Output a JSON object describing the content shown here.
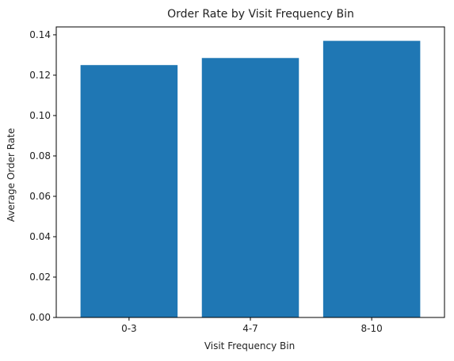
{
  "chart_data": {
    "type": "bar",
    "title": "Order Rate by Visit Frequency Bin",
    "xlabel": "Visit Frequency Bin",
    "ylabel": "Average Order Rate",
    "categories": [
      "0-3",
      "4-7",
      "8-10"
    ],
    "values": [
      0.125,
      0.1285,
      0.137
    ],
    "ylim": [
      0,
      0.1439
    ],
    "yticks": [
      "0.00",
      "0.02",
      "0.04",
      "0.06",
      "0.08",
      "0.10",
      "0.12",
      "0.14"
    ],
    "bar_color": "#1f77b4",
    "grid": false,
    "legend": false
  }
}
